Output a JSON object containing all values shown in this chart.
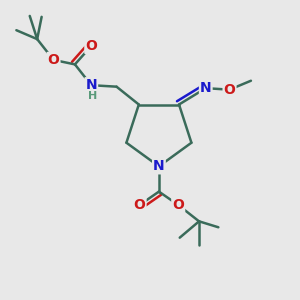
{
  "background_color": "#e8e8e8",
  "figsize": [
    3.0,
    3.0
  ],
  "dpi": 100,
  "atom_colors": {
    "C": "#3a6b5a",
    "N": "#1a1acc",
    "O": "#cc1a1a",
    "H": "#5a9a7a"
  },
  "bond_color": "#3a6b5a",
  "bond_width": 1.8,
  "font_size_atom": 10,
  "font_size_small": 8,
  "xlim": [
    0,
    10
  ],
  "ylim": [
    0,
    10
  ]
}
